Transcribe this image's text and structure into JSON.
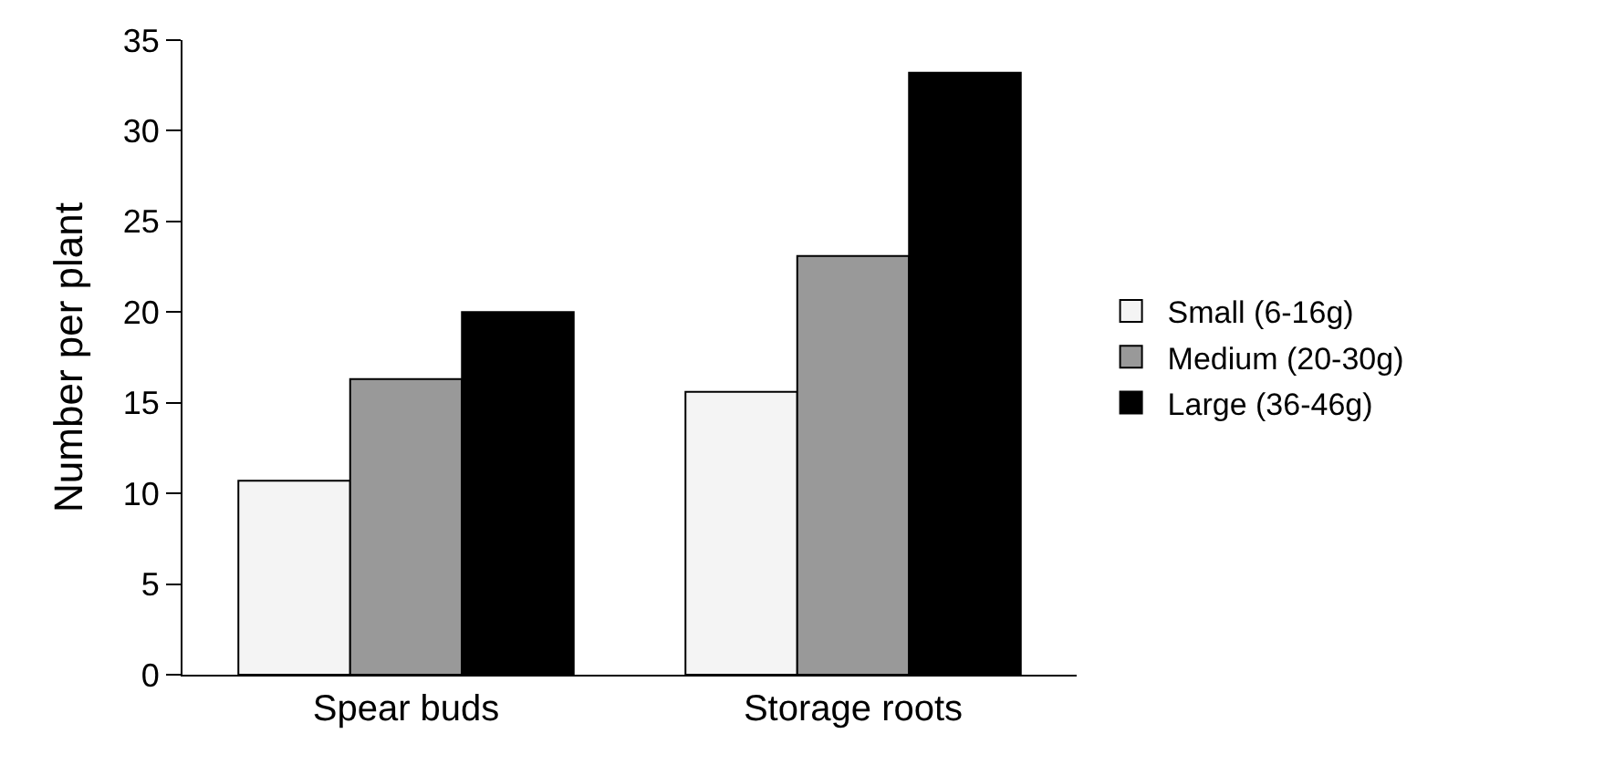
{
  "chart_data": {
    "type": "bar",
    "ylabel": "Number per plant",
    "categories": [
      "Spear buds",
      "Storage roots"
    ],
    "series": [
      {
        "name": "Small (6-16g)",
        "color": "#f4f4f4",
        "values": [
          10.7,
          15.6
        ]
      },
      {
        "name": "Medium (20-30g)",
        "color": "#999999",
        "values": [
          16.3,
          23.1
        ]
      },
      {
        "name": "Large (36-46g)",
        "color": "#000000",
        "values": [
          20.0,
          33.2
        ]
      }
    ],
    "ylim": [
      0,
      35
    ],
    "yticks": [
      0,
      5,
      10,
      15,
      20,
      25,
      30,
      35
    ],
    "grid": false,
    "legend": "right"
  }
}
